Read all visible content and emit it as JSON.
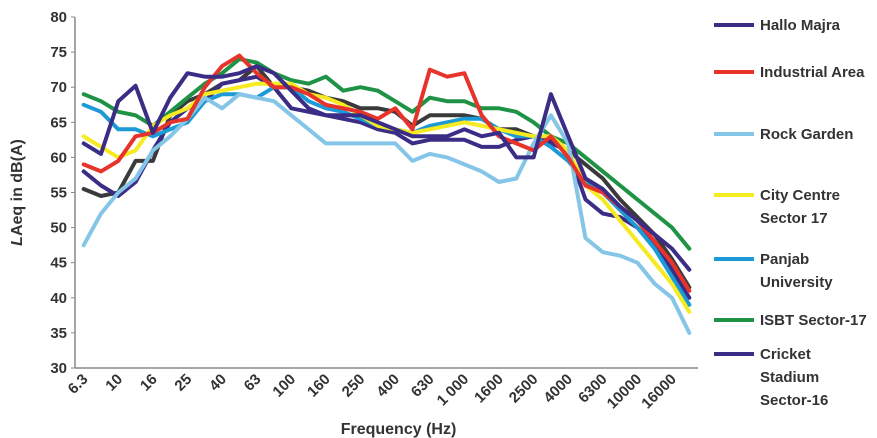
{
  "chart_data": {
    "type": "line",
    "title": "",
    "xlabel": "Frequency (Hz)",
    "ylabel": "LAeq in dB(A)",
    "ylabel_parts": [
      "L",
      "Aeq in dB(A)"
    ],
    "ylim": [
      30,
      80
    ],
    "yticks": [
      "30",
      "35",
      "40",
      "45",
      "50",
      "55",
      "60",
      "65",
      "70",
      "75",
      "80"
    ],
    "xtick_labels": [
      "6.3",
      "10",
      "16",
      "25",
      "40",
      "63",
      "100",
      "160",
      "250",
      "400",
      "630",
      "1 000",
      "1600",
      "2500",
      "4000",
      "6300",
      "10000",
      "16000"
    ],
    "x": [
      "6.3",
      "8",
      "10",
      "12.5",
      "16",
      "20",
      "25",
      "31.5",
      "40",
      "50",
      "63",
      "80",
      "100",
      "125",
      "160",
      "200",
      "250",
      "315",
      "400",
      "500",
      "630",
      "800",
      "1000",
      "1250",
      "1600",
      "2000",
      "2500",
      "3150",
      "4000",
      "5000",
      "6300",
      "8000",
      "10000",
      "12500",
      "16000",
      "20000"
    ],
    "grid": false,
    "legend_position": "right",
    "series": [
      {
        "name": "Hallo Majra",
        "color": "#3b2c85",
        "values": [
          62,
          60.5,
          68,
          70.2,
          63.5,
          68.5,
          72,
          71.5,
          71.5,
          72,
          73,
          72,
          69.5,
          67,
          66,
          66,
          66,
          65,
          64,
          63,
          63,
          63,
          64,
          63,
          63.5,
          60,
          60,
          69,
          63,
          57,
          55.5,
          53,
          51,
          49,
          47,
          44
        ]
      },
      {
        "name": "Industrial Area",
        "color": "#e8332b",
        "values": [
          59,
          58,
          59.5,
          63,
          63.5,
          65,
          65.5,
          70,
          73,
          74.5,
          72,
          70,
          70,
          69,
          67.5,
          67,
          66.5,
          65.5,
          67,
          64,
          72.5,
          71.5,
          72,
          66,
          63,
          62,
          61,
          63,
          60,
          56,
          55,
          53,
          51,
          48,
          45,
          41
        ]
      },
      {
        "name": "Rock Garden",
        "color": "#85c6e8",
        "values": [
          47.5,
          52,
          55,
          57,
          61,
          63,
          65.5,
          68.5,
          67,
          69,
          68.5,
          68,
          66,
          64,
          62,
          62,
          62,
          62,
          62,
          59.5,
          60.5,
          60,
          59,
          58,
          56.5,
          57,
          62,
          66,
          62,
          48.5,
          46.5,
          46,
          45,
          42,
          40,
          35
        ]
      },
      {
        "name": "City Centre Sector 17",
        "color": "#f6ea21",
        "values": [
          63,
          61.5,
          60,
          61,
          64.5,
          66,
          67,
          69,
          69.5,
          70,
          70.5,
          70.5,
          70.5,
          69,
          68.5,
          67.5,
          66,
          64.5,
          64,
          63.5,
          64,
          64.5,
          65,
          64.5,
          64,
          63.5,
          63,
          63,
          61,
          56,
          54,
          51,
          48,
          45,
          42,
          38
        ]
      },
      {
        "name": "Panjab University",
        "color": "#1b9ad6",
        "values": [
          67.5,
          66.5,
          64,
          64,
          63,
          64,
          65,
          68,
          69,
          69,
          68.5,
          70,
          70,
          68,
          67,
          66.5,
          65.5,
          64.5,
          64,
          63.5,
          64.5,
          65,
          65.5,
          65.5,
          64,
          63,
          63,
          61.5,
          59.5,
          56.5,
          55,
          52.5,
          50,
          47,
          43,
          39
        ]
      },
      {
        "name": "ISBT Sector-17",
        "color": "#1e9345",
        "values": [
          69,
          68,
          66.5,
          66,
          64.5,
          66.5,
          68.5,
          70.5,
          72,
          74,
          73.5,
          72,
          71,
          70.5,
          71.5,
          69.5,
          70,
          69.5,
          68,
          66.5,
          68.5,
          68,
          68,
          67,
          67,
          66.5,
          65,
          63,
          62,
          60,
          58,
          56,
          54,
          52,
          50,
          47
        ]
      },
      {
        "name": "Cricket Stadium Sector-16",
        "color": "#3b2c85",
        "values": [
          58,
          56,
          54.5,
          56.5,
          61,
          65,
          67,
          68,
          70.5,
          71,
          71.5,
          70,
          67,
          66.5,
          66,
          65.5,
          65,
          64,
          63.5,
          62,
          62.5,
          62.5,
          62.5,
          61.5,
          61.5,
          62.5,
          63,
          62,
          61,
          54,
          52,
          51.5,
          50,
          47.5,
          44,
          40
        ]
      },
      {
        "name": "",
        "color": "#3a3a3a",
        "values": [
          55.5,
          54.5,
          55,
          59.5,
          59.5,
          66,
          68,
          69,
          70.5,
          71,
          73,
          70,
          70,
          69.5,
          68.5,
          68,
          67,
          67,
          66.5,
          64.5,
          66,
          66,
          66,
          65.5,
          64,
          64,
          63,
          62.5,
          61,
          59,
          57,
          54,
          51.5,
          49,
          45.5,
          41.5
        ]
      }
    ]
  }
}
